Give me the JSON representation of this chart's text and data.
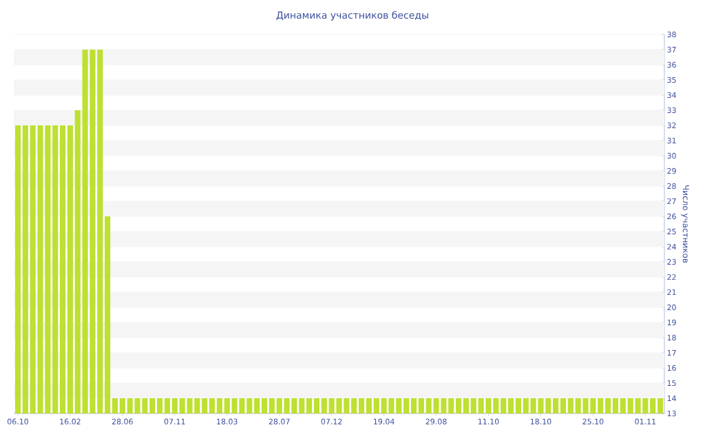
{
  "chart_data": {
    "type": "bar",
    "title": "Динамика участников беседы",
    "ylabel": "Число участников",
    "categories": [
      "06.10",
      null,
      null,
      null,
      null,
      null,
      null,
      "16.02",
      null,
      null,
      null,
      null,
      null,
      null,
      "28.06",
      null,
      null,
      null,
      null,
      null,
      null,
      "07.11",
      null,
      null,
      null,
      null,
      null,
      null,
      "18.03",
      null,
      null,
      null,
      null,
      null,
      null,
      "28.07",
      null,
      null,
      null,
      null,
      null,
      null,
      "07.12",
      null,
      null,
      null,
      null,
      null,
      null,
      "19.04",
      null,
      null,
      null,
      null,
      null,
      null,
      "29.08",
      null,
      null,
      null,
      null,
      null,
      null,
      "11.10",
      null,
      null,
      null,
      null,
      null,
      null,
      "18.10",
      null,
      null,
      null,
      null,
      null,
      null,
      "25.10",
      null,
      null,
      null,
      null,
      null,
      null,
      "01.11",
      null,
      null
    ],
    "values": [
      32,
      32,
      32,
      32,
      32,
      32,
      32,
      32,
      33,
      37,
      37,
      37,
      26,
      14,
      14,
      14,
      14,
      14,
      14,
      14,
      14,
      14,
      14,
      14,
      14,
      14,
      14,
      14,
      14,
      14,
      14,
      14,
      14,
      14,
      14,
      14,
      14,
      14,
      14,
      14,
      14,
      14,
      14,
      14,
      14,
      14,
      14,
      14,
      14,
      14,
      14,
      14,
      14,
      14,
      14,
      14,
      14,
      14,
      14,
      14,
      14,
      14,
      14,
      14,
      14,
      14,
      14,
      14,
      14,
      14,
      14,
      14,
      14,
      14,
      14,
      14,
      14,
      14,
      14,
      14,
      14,
      14,
      14,
      14,
      14,
      14,
      14
    ],
    "color": "#bde031",
    "ylim": [
      13,
      38
    ],
    "yticks": [
      13,
      14,
      15,
      16,
      17,
      18,
      19,
      20,
      21,
      22,
      23,
      24,
      25,
      26,
      27,
      28,
      29,
      30,
      31,
      32,
      33,
      34,
      35,
      36,
      37,
      38
    ],
    "grid": "y"
  }
}
